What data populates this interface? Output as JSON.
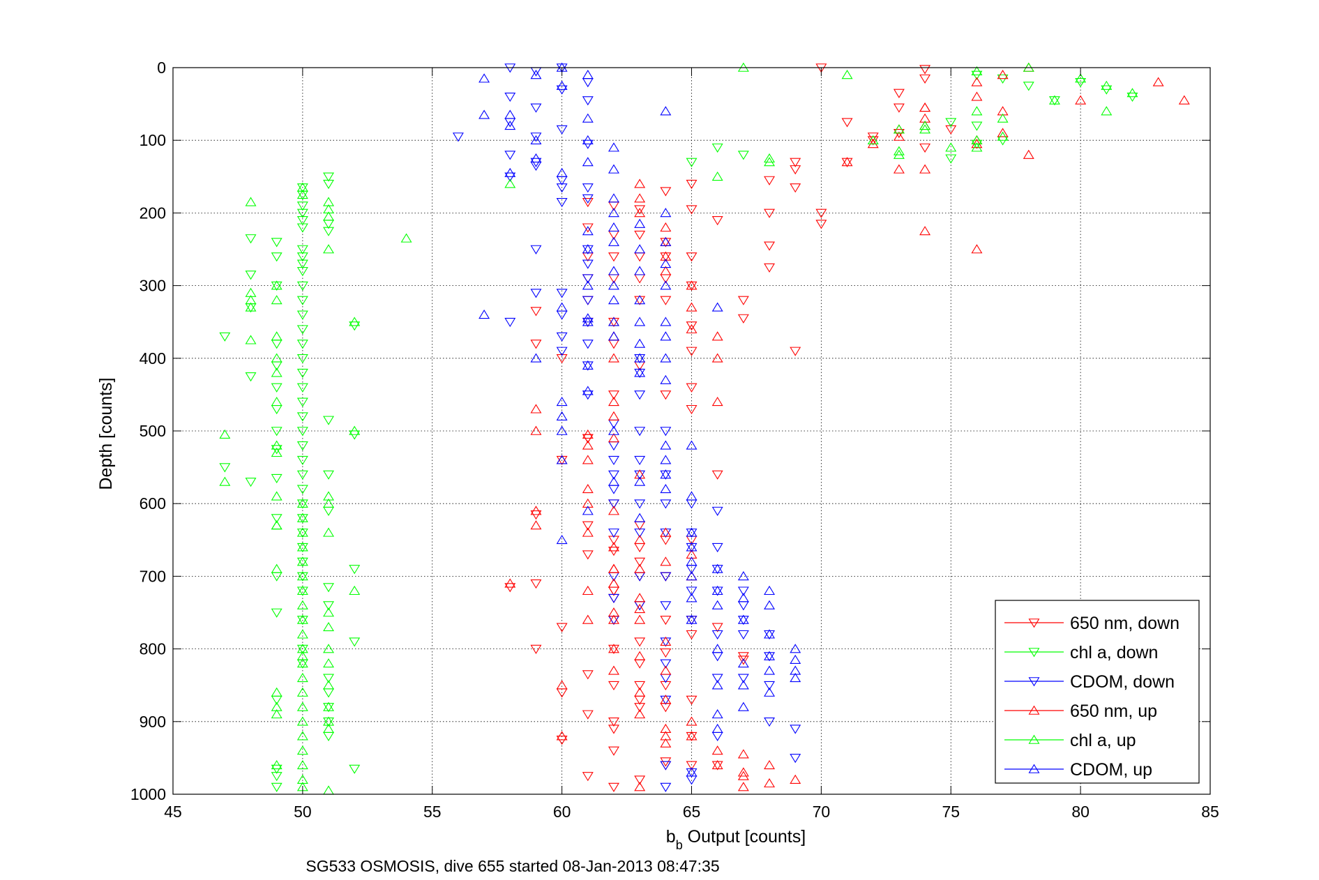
{
  "chart_data": {
    "type": "scatter",
    "xlabel_main": "b",
    "xlabel_sub": "b",
    "xlabel_rest": " Output [counts]",
    "ylabel": "Depth [counts]",
    "caption": "SG533 OSMOSIS, dive 655 started 08-Jan-2013 08:47:35",
    "xlim": [
      45,
      85
    ],
    "ylim": [
      0,
      1000
    ],
    "y_reversed": true,
    "grid": true,
    "legend_position": "bottom-right",
    "xticks": [
      "45",
      "50",
      "55",
      "60",
      "65",
      "70",
      "75",
      "80",
      "85"
    ],
    "yticks": [
      "0",
      "100",
      "200",
      "300",
      "400",
      "500",
      "600",
      "700",
      "800",
      "900",
      "1000"
    ],
    "series": [
      {
        "name": "650 nm, down",
        "color": "#ff0000",
        "marker": "triangle-down",
        "x": [
          70,
          74,
          72,
          73,
          71,
          74,
          75,
          74,
          72,
          71,
          73,
          73,
          70,
          69,
          69,
          68,
          70,
          69,
          68,
          68,
          67,
          67,
          68,
          69,
          66,
          65,
          65,
          65,
          65,
          65,
          64,
          64,
          64,
          64,
          64,
          63,
          63,
          63,
          63,
          63,
          62,
          62,
          62,
          62,
          62,
          62,
          61,
          61,
          61,
          61,
          61,
          61,
          60,
          60,
          60,
          59,
          59,
          59,
          59,
          59,
          58,
          60,
          62,
          63,
          64,
          65,
          66,
          61,
          62,
          63,
          64,
          62,
          63,
          64,
          65,
          67,
          65,
          65,
          64,
          63,
          62,
          61,
          60,
          61,
          62,
          63,
          64,
          65,
          66,
          63,
          64,
          62,
          63,
          61,
          62,
          62,
          63,
          64,
          65,
          66,
          67,
          62,
          61,
          62,
          63,
          64,
          62,
          62,
          63,
          64,
          65,
          65,
          62,
          63,
          61,
          61,
          62,
          63,
          64,
          65
        ],
        "y": [
          0,
          15,
          95,
          35,
          75,
          2,
          85,
          110,
          100,
          130,
          55,
          90,
          200,
          130,
          140,
          200,
          215,
          390,
          245,
          155,
          320,
          345,
          275,
          165,
          210,
          160,
          195,
          260,
          300,
          355,
          170,
          240,
          260,
          290,
          320,
          195,
          230,
          260,
          290,
          320,
          190,
          230,
          260,
          290,
          350,
          380,
          185,
          220,
          260,
          290,
          320,
          350,
          400,
          540,
          770,
          335,
          380,
          615,
          710,
          800,
          715,
          860,
          910,
          880,
          650,
          470,
          560,
          890,
          720,
          790,
          805,
          940,
          820,
          850,
          870,
          815,
          390,
          440,
          450,
          410,
          450,
          510,
          925,
          975,
          990,
          980,
          955,
          960,
          960,
          850,
          880,
          665,
          700,
          670,
          730,
          760,
          740,
          760,
          780,
          770,
          810,
          800,
          835,
          850,
          870,
          960,
          900,
          720,
          680,
          700,
          760,
          920,
          600,
          630,
          510,
          630,
          650,
          660,
          700,
          650
        ]
      },
      {
        "name": "chl a, down",
        "color": "#00ff00",
        "marker": "triangle-down",
        "x": [
          76,
          77,
          78,
          79,
          80,
          81,
          82,
          75,
          76,
          77,
          76,
          75,
          66,
          67,
          65,
          51,
          51,
          50,
          50,
          50,
          50,
          50,
          50,
          50,
          50,
          50,
          50,
          50,
          50,
          50,
          50,
          50,
          50,
          50,
          50,
          50,
          50,
          50,
          50,
          50,
          50,
          50,
          50,
          50,
          50,
          50,
          50,
          50,
          50,
          49,
          49,
          49,
          49,
          49,
          49,
          49,
          49,
          49,
          49,
          49,
          48,
          48,
          48,
          48,
          48,
          47,
          47,
          51,
          51,
          51,
          51,
          51,
          51,
          51,
          52,
          52,
          52,
          52,
          52,
          49,
          49,
          49,
          50,
          50,
          50,
          51,
          51,
          51,
          51,
          51,
          49,
          49,
          49
        ],
        "y": [
          10,
          15,
          25,
          45,
          20,
          30,
          40,
          75,
          105,
          100,
          80,
          125,
          110,
          120,
          130,
          150,
          160,
          165,
          175,
          190,
          200,
          210,
          220,
          250,
          260,
          270,
          280,
          300,
          320,
          340,
          360,
          380,
          400,
          420,
          440,
          460,
          480,
          500,
          520,
          540,
          560,
          580,
          600,
          620,
          640,
          660,
          680,
          700,
          720,
          240,
          260,
          300,
          380,
          410,
          440,
          470,
          500,
          525,
          565,
          620,
          235,
          285,
          330,
          425,
          570,
          370,
          550,
          225,
          215,
          485,
          560,
          610,
          715,
          740,
          355,
          505,
          690,
          790,
          965,
          700,
          750,
          870,
          760,
          800,
          820,
          840,
          860,
          880,
          900,
          920,
          965,
          990,
          975
        ]
      },
      {
        "name": "CDOM, down",
        "color": "#0000ff",
        "marker": "triangle-down",
        "x": [
          58,
          59,
          60,
          61,
          58,
          59,
          60,
          61,
          58,
          59,
          60,
          61,
          58,
          59,
          60,
          61,
          56,
          58,
          59,
          60,
          61,
          60,
          59,
          59,
          58,
          60,
          60,
          60,
          60,
          61,
          61,
          61,
          61,
          61,
          61,
          61,
          61,
          62,
          62,
          62,
          62,
          62,
          62,
          62,
          62,
          62,
          62,
          63,
          63,
          63,
          63,
          63,
          63,
          63,
          63,
          63,
          63,
          64,
          64,
          64,
          64,
          64,
          64,
          64,
          64,
          64,
          64,
          65,
          65,
          65,
          65,
          65,
          65,
          66,
          66,
          66,
          66,
          66,
          66,
          66,
          67,
          67,
          67,
          67,
          67,
          68,
          68,
          68,
          68,
          69,
          69,
          64,
          64,
          65,
          65,
          66
        ],
        "y": [
          0,
          5,
          0,
          20,
          40,
          55,
          30,
          45,
          75,
          95,
          85,
          105,
          120,
          135,
          155,
          165,
          95,
          150,
          130,
          165,
          180,
          185,
          250,
          310,
          350,
          310,
          340,
          370,
          390,
          410,
          250,
          270,
          290,
          320,
          350,
          380,
          450,
          540,
          580,
          490,
          520,
          560,
          600,
          640,
          700,
          730,
          760,
          400,
          420,
          450,
          500,
          540,
          560,
          600,
          640,
          700,
          740,
          500,
          560,
          600,
          640,
          700,
          740,
          790,
          820,
          840,
          870,
          600,
          640,
          660,
          690,
          720,
          760,
          610,
          660,
          690,
          720,
          780,
          810,
          840,
          720,
          740,
          760,
          780,
          840,
          780,
          810,
          850,
          900,
          910,
          950,
          960,
          990,
          980,
          970,
          920
        ]
      },
      {
        "name": "650 nm, up",
        "color": "#ff0000",
        "marker": "triangle-up",
        "x": [
          83,
          84,
          80,
          78,
          77,
          77,
          76,
          76,
          74,
          74,
          73,
          73,
          71,
          74,
          73,
          72,
          74,
          76,
          76,
          78,
          77,
          76,
          74,
          74,
          63,
          63,
          63,
          64,
          64,
          64,
          64,
          65,
          65,
          65,
          66,
          66,
          66,
          62,
          62,
          62,
          62,
          62,
          62,
          61,
          61,
          61,
          61,
          60,
          60,
          60,
          59,
          59,
          59,
          59,
          58,
          62,
          62,
          63,
          64,
          64,
          65,
          65,
          66,
          66,
          67,
          67,
          67,
          68,
          68,
          67,
          69,
          63,
          63,
          64,
          62,
          62,
          61,
          62,
          62,
          63,
          63,
          64,
          64,
          65,
          65,
          63,
          61,
          62,
          62,
          62,
          63,
          63,
          64,
          64,
          64,
          63,
          63,
          61,
          61,
          62
        ],
        "y": [
          20,
          45,
          45,
          0,
          10,
          60,
          20,
          40,
          55,
          70,
          85,
          140,
          130,
          225,
          95,
          105,
          80,
          105,
          250,
          120,
          90,
          100,
          55,
          140,
          160,
          180,
          200,
          220,
          240,
          260,
          280,
          300,
          330,
          360,
          370,
          400,
          460,
          350,
          370,
          400,
          460,
          480,
          510,
          505,
          520,
          600,
          640,
          540,
          850,
          920,
          470,
          500,
          610,
          630,
          710,
          710,
          760,
          810,
          830,
          870,
          900,
          920,
          940,
          960,
          970,
          990,
          945,
          960,
          985,
          975,
          980,
          745,
          760,
          790,
          690,
          710,
          720,
          660,
          690,
          650,
          690,
          640,
          680,
          670,
          700,
          730,
          760,
          750,
          800,
          830,
          860,
          890,
          910,
          920,
          930,
          990,
          560,
          580,
          540,
          610
        ]
      },
      {
        "name": "chl a, up",
        "color": "#00ff00",
        "marker": "triangle-up",
        "x": [
          67,
          71,
          76,
          78,
          79,
          80,
          81,
          82,
          81,
          77,
          76,
          76,
          77,
          75,
          76,
          74,
          73,
          72,
          73,
          74,
          73,
          68,
          68,
          66,
          58,
          50,
          50,
          51,
          51,
          51,
          51,
          54,
          52,
          52,
          52,
          51,
          51,
          51,
          50,
          50,
          50,
          50,
          50,
          50,
          50,
          50,
          50,
          50,
          50,
          50,
          50,
          50,
          49,
          49,
          49,
          49,
          49,
          49,
          49,
          49,
          49,
          48,
          48,
          48,
          48,
          47,
          47,
          48,
          49,
          49,
          49,
          50,
          50,
          50,
          50,
          50,
          50,
          50,
          50,
          51,
          51,
          51,
          51,
          51,
          51,
          51,
          51,
          51,
          49,
          49,
          49,
          49
        ],
        "y": [
          0,
          10,
          5,
          0,
          45,
          15,
          25,
          35,
          60,
          70,
          60,
          100,
          95,
          110,
          110,
          85,
          120,
          100,
          115,
          80,
          85,
          125,
          130,
          150,
          160,
          165,
          175,
          185,
          195,
          205,
          250,
          235,
          350,
          500,
          720,
          590,
          600,
          640,
          600,
          620,
          640,
          660,
          680,
          700,
          720,
          740,
          760,
          780,
          800,
          820,
          840,
          860,
          300,
          320,
          370,
          400,
          420,
          460,
          520,
          530,
          630,
          185,
          310,
          320,
          330,
          505,
          570,
          375,
          590,
          630,
          690,
          880,
          900,
          920,
          940,
          960,
          980,
          990,
          810,
          750,
          770,
          800,
          820,
          850,
          880,
          900,
          910,
          995,
          860,
          880,
          890,
          960
        ]
      },
      {
        "name": "CDOM, up",
        "color": "#0000ff",
        "marker": "triangle-up",
        "x": [
          57,
          57,
          58,
          58,
          58,
          59,
          59,
          59,
          60,
          60,
          60,
          60,
          61,
          61,
          61,
          61,
          61,
          61,
          61,
          61,
          61,
          61,
          62,
          62,
          62,
          62,
          62,
          62,
          62,
          62,
          62,
          62,
          62,
          63,
          63,
          63,
          63,
          63,
          63,
          63,
          63,
          64,
          64,
          64,
          64,
          64,
          64,
          64,
          64,
          64,
          65,
          65,
          65,
          65,
          65,
          65,
          65,
          65,
          66,
          66,
          66,
          66,
          66,
          66,
          67,
          67,
          67,
          67,
          67,
          67,
          68,
          68,
          68,
          68,
          68,
          68,
          69,
          69,
          69,
          69,
          57,
          59,
          60,
          60,
          60,
          60,
          60,
          61,
          61,
          62,
          62,
          63,
          63,
          64,
          64,
          64,
          64,
          65,
          66,
          66
        ],
        "y": [
          15,
          65,
          65,
          80,
          145,
          10,
          100,
          125,
          0,
          25,
          145,
          330,
          10,
          70,
          100,
          130,
          225,
          250,
          300,
          345,
          410,
          445,
          110,
          140,
          180,
          200,
          220,
          240,
          280,
          300,
          320,
          350,
          370,
          215,
          250,
          280,
          320,
          350,
          380,
          400,
          420,
          60,
          200,
          240,
          270,
          300,
          350,
          370,
          400,
          430,
          520,
          590,
          640,
          660,
          680,
          700,
          730,
          760,
          330,
          690,
          720,
          740,
          800,
          850,
          700,
          730,
          760,
          820,
          850,
          880,
          720,
          740,
          780,
          810,
          830,
          860,
          800,
          815,
          830,
          840,
          340,
          400,
          460,
          480,
          500,
          540,
          650,
          350,
          610,
          500,
          570,
          570,
          620,
          520,
          540,
          560,
          580,
          970,
          890,
          910
        ]
      }
    ]
  }
}
